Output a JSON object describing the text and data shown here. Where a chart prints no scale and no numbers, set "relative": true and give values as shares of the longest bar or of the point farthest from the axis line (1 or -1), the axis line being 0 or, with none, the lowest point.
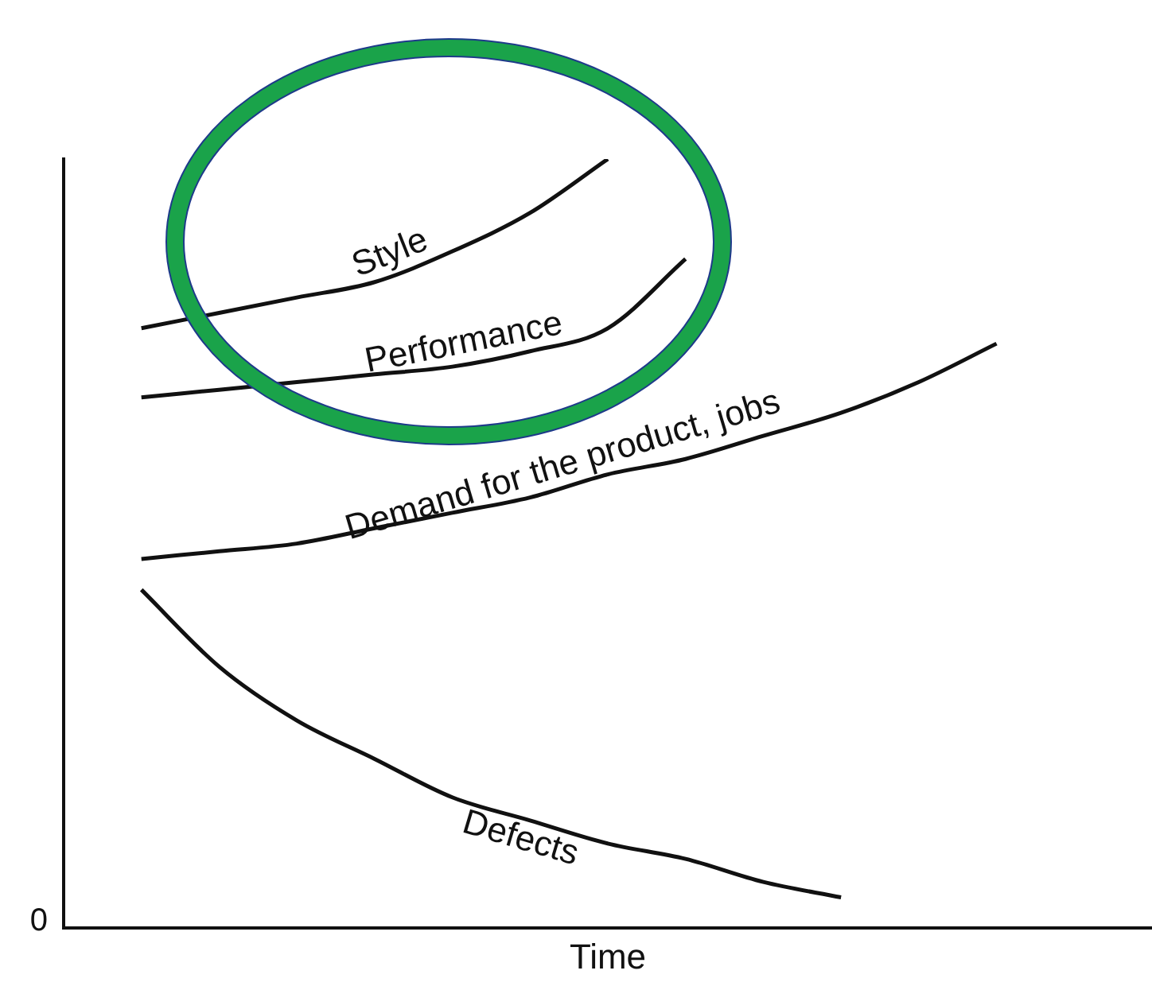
{
  "chart_data": {
    "type": "line",
    "relative": true,
    "xlabel": "Time",
    "annotations": [
      "0"
    ],
    "legend": false,
    "marker": "none",
    "categories": [
      null,
      null,
      null,
      null,
      null,
      null,
      null,
      null,
      null,
      null,
      null,
      null,
      null,
      null,
      null
    ],
    "series": [
      {
        "name": "Style",
        "color": "#111111",
        "values": [
          null,
          0.78,
          0.8,
          0.82,
          0.84,
          0.88,
          0.93,
          1.0,
          null,
          null,
          null,
          null,
          null,
          null,
          null
        ]
      },
      {
        "name": "Performance",
        "color": "#111111",
        "values": [
          null,
          0.69,
          0.7,
          0.71,
          0.72,
          0.73,
          0.75,
          0.78,
          0.87,
          null,
          null,
          null,
          null,
          null,
          null
        ]
      },
      {
        "name": "Demand for the product, jobs",
        "color": "#111111",
        "values": [
          null,
          0.48,
          0.49,
          0.5,
          0.52,
          0.54,
          0.56,
          0.59,
          0.61,
          0.64,
          0.67,
          0.71,
          0.76,
          null,
          null
        ]
      },
      {
        "name": "Defects",
        "color": "#111111",
        "values": [
          null,
          0.44,
          0.34,
          0.27,
          0.22,
          0.17,
          0.14,
          0.11,
          0.09,
          0.06,
          0.04,
          null,
          null,
          null,
          null
        ]
      }
    ]
  }
}
